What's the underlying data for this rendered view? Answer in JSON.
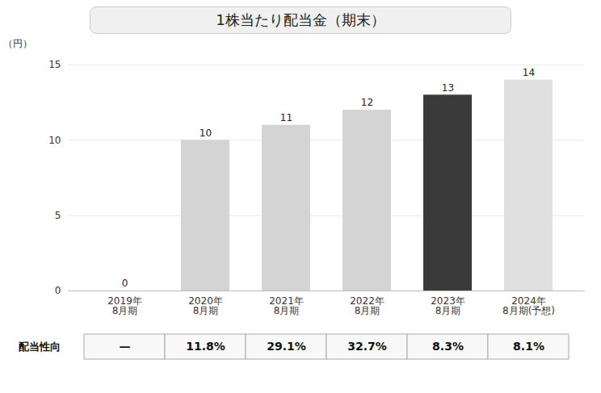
{
  "chart_data": {
    "type": "bar",
    "title": "1株当たり配当金（期末）",
    "categories": [
      "2019年\n8月期",
      "2020年\n8月期",
      "2021年\n8月期",
      "2022年\n8月期",
      "2023年\n8月期",
      "2024年\n8月期(予想)"
    ],
    "values": [
      0,
      10,
      11,
      12,
      13,
      14
    ],
    "colors": [
      "#d4d4d4",
      "#d4d4d4",
      "#d4d4d4",
      "#d4d4d4",
      "#3a3a3a",
      "#e0e0e0"
    ],
    "ylabel": "（円）",
    "ylim": [
      0,
      15
    ],
    "yticks": [
      0,
      5,
      10,
      15
    ],
    "grid": true,
    "data_labels": true,
    "table": {
      "name": "配当性向",
      "values": [
        null,
        11.8,
        29.1,
        32.7,
        8.3,
        8.1
      ],
      "value_labels": [
        "—",
        "11.8%",
        "29.1%",
        "32.7%",
        "8.3%",
        "8.1%"
      ]
    }
  }
}
